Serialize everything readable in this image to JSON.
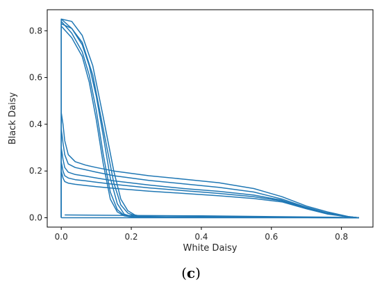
{
  "caption": {
    "prefix": "(",
    "letter": "c",
    "suffix": ")"
  },
  "chart_data": {
    "type": "line",
    "title": "",
    "xlabel": "White Daisy",
    "ylabel": "Black Daisy",
    "xlim": [
      -0.04,
      0.89
    ],
    "ylim": [
      -0.04,
      0.89
    ],
    "xticks": [
      0.0,
      0.2,
      0.4,
      0.6,
      0.8
    ],
    "yticks": [
      0.0,
      0.2,
      0.4,
      0.6,
      0.8
    ],
    "tick_labels_x": [
      "0.0",
      "0.2",
      "0.4",
      "0.6",
      "0.8"
    ],
    "tick_labels_y": [
      "0.0",
      "0.2",
      "0.4",
      "0.6",
      "0.8"
    ],
    "grid": false,
    "line_color": "#1f77b4",
    "series": [
      {
        "x": [
          0.0,
          0.0,
          0.03,
          0.06,
          0.08,
          0.1,
          0.12,
          0.14,
          0.16,
          0.18,
          0.2,
          0.22,
          0.3,
          0.5,
          0.7,
          0.85
        ],
        "y": [
          0.0,
          0.85,
          0.81,
          0.74,
          0.65,
          0.52,
          0.35,
          0.17,
          0.06,
          0.015,
          0.006,
          0.004,
          0.003,
          0.002,
          0.001,
          0.0
        ]
      },
      {
        "x": [
          0.0,
          0.0,
          0.03,
          0.06,
          0.08,
          0.1,
          0.12,
          0.14,
          0.16,
          0.18,
          0.2,
          0.22,
          0.3,
          0.5,
          0.7,
          0.85
        ],
        "y": [
          0.0,
          0.84,
          0.79,
          0.71,
          0.61,
          0.46,
          0.27,
          0.11,
          0.035,
          0.01,
          0.005,
          0.003,
          0.002,
          0.002,
          0.001,
          0.0
        ]
      },
      {
        "x": [
          0.0,
          0.0,
          0.03,
          0.06,
          0.08,
          0.1,
          0.12,
          0.14,
          0.16,
          0.18,
          0.2,
          0.22,
          0.3,
          0.5,
          0.7,
          0.85
        ],
        "y": [
          0.0,
          0.82,
          0.77,
          0.69,
          0.58,
          0.42,
          0.23,
          0.08,
          0.025,
          0.008,
          0.004,
          0.003,
          0.002,
          0.001,
          0.001,
          0.0
        ]
      },
      {
        "x": [
          0.0,
          0.0,
          0.03,
          0.06,
          0.09,
          0.12,
          0.15,
          0.17,
          0.19,
          0.21,
          0.23,
          0.3,
          0.5,
          0.7,
          0.85
        ],
        "y": [
          0.0,
          0.85,
          0.84,
          0.78,
          0.65,
          0.43,
          0.2,
          0.08,
          0.03,
          0.012,
          0.006,
          0.004,
          0.003,
          0.002,
          0.0
        ]
      },
      {
        "x": [
          0.0,
          0.0,
          0.03,
          0.06,
          0.09,
          0.12,
          0.15,
          0.17,
          0.19,
          0.21,
          0.23,
          0.3,
          0.5,
          0.7,
          0.85
        ],
        "y": [
          0.0,
          0.83,
          0.81,
          0.75,
          0.61,
          0.38,
          0.15,
          0.055,
          0.02,
          0.009,
          0.005,
          0.004,
          0.003,
          0.002,
          0.0
        ]
      },
      {
        "x": [
          0.0,
          0.0,
          0.005,
          0.01,
          0.02,
          0.04,
          0.07,
          0.1,
          0.15,
          0.25,
          0.35,
          0.45,
          0.55,
          0.63,
          0.7,
          0.76,
          0.82,
          0.85
        ],
        "y": [
          0.0,
          0.45,
          0.4,
          0.33,
          0.27,
          0.24,
          0.225,
          0.215,
          0.2,
          0.18,
          0.165,
          0.15,
          0.125,
          0.09,
          0.05,
          0.025,
          0.005,
          0.0
        ]
      },
      {
        "x": [
          0.0,
          0.0,
          0.005,
          0.01,
          0.02,
          0.04,
          0.07,
          0.1,
          0.15,
          0.25,
          0.35,
          0.45,
          0.55,
          0.63,
          0.7,
          0.76,
          0.82,
          0.85
        ],
        "y": [
          0.0,
          0.38,
          0.32,
          0.27,
          0.23,
          0.215,
          0.205,
          0.195,
          0.18,
          0.16,
          0.145,
          0.13,
          0.11,
          0.08,
          0.045,
          0.02,
          0.005,
          0.0
        ]
      },
      {
        "x": [
          0.0,
          0.0,
          0.005,
          0.01,
          0.02,
          0.04,
          0.07,
          0.1,
          0.15,
          0.25,
          0.35,
          0.45,
          0.55,
          0.63,
          0.7,
          0.76,
          0.82,
          0.85
        ],
        "y": [
          0.0,
          0.3,
          0.25,
          0.215,
          0.195,
          0.185,
          0.178,
          0.17,
          0.158,
          0.14,
          0.125,
          0.113,
          0.097,
          0.075,
          0.042,
          0.018,
          0.004,
          0.0
        ]
      },
      {
        "x": [
          0.0,
          0.0,
          0.005,
          0.01,
          0.02,
          0.04,
          0.07,
          0.1,
          0.15,
          0.25,
          0.35,
          0.45,
          0.55,
          0.63,
          0.7,
          0.76,
          0.82,
          0.85
        ],
        "y": [
          0.0,
          0.24,
          0.2,
          0.18,
          0.17,
          0.163,
          0.158,
          0.152,
          0.143,
          0.128,
          0.116,
          0.104,
          0.09,
          0.072,
          0.04,
          0.017,
          0.004,
          0.0
        ]
      },
      {
        "x": [
          0.0,
          0.0,
          0.005,
          0.01,
          0.02,
          0.04,
          0.07,
          0.1,
          0.15,
          0.25,
          0.35,
          0.45,
          0.55,
          0.63,
          0.7,
          0.76,
          0.82,
          0.85
        ],
        "y": [
          0.0,
          0.2,
          0.17,
          0.155,
          0.148,
          0.143,
          0.138,
          0.133,
          0.126,
          0.114,
          0.104,
          0.094,
          0.082,
          0.068,
          0.038,
          0.016,
          0.004,
          0.0
        ]
      },
      {
        "x": [
          0.01,
          0.2,
          0.4,
          0.6,
          0.8,
          0.85
        ],
        "y": [
          0.012,
          0.01,
          0.008,
          0.005,
          0.002,
          0.0
        ]
      },
      {
        "x": [
          0.0,
          0.2,
          0.4,
          0.6,
          0.8,
          0.85
        ],
        "y": [
          0.0,
          0.0,
          0.0,
          0.0,
          0.0,
          0.0
        ]
      }
    ]
  }
}
